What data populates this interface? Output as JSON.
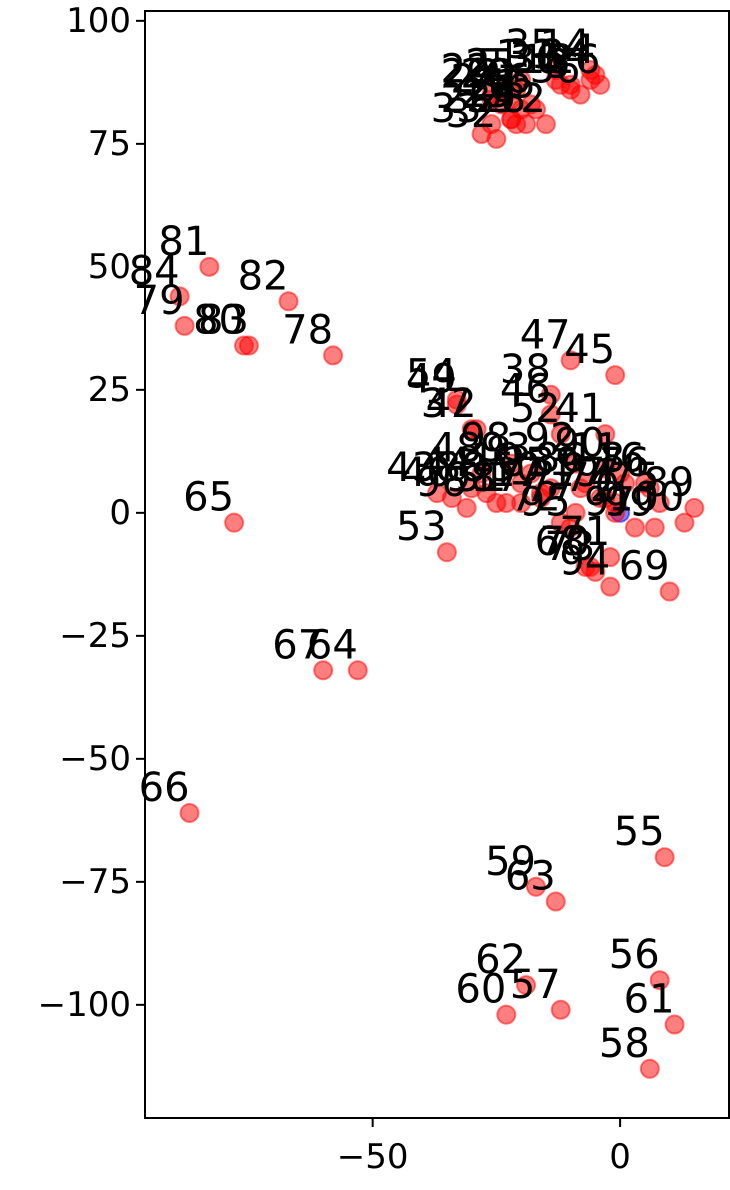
{
  "chart_data": {
    "type": "scatter",
    "title": "",
    "xlabel": "",
    "ylabel": "",
    "xlim": [
      -96,
      22
    ],
    "ylim": [
      -123,
      102
    ],
    "grid": false,
    "xticks": [
      -50,
      0
    ],
    "xtick_labels": [
      "−50",
      "0"
    ],
    "yticks": [
      100,
      75,
      50,
      25,
      0,
      -25,
      -50,
      -75,
      -100
    ],
    "ytick_labels": [
      "100",
      "75",
      "50",
      "25",
      "0",
      "−25",
      "−50",
      "−75",
      "−100"
    ],
    "point_color": "#ff0000",
    "highlight_color": "#0000ff",
    "points": [
      {
        "label": "0",
        "x": 0,
        "y": 0,
        "highlight": true
      },
      {
        "label": "1",
        "x": -20,
        "y": 88
      },
      {
        "label": "2",
        "x": -1,
        "y": 0
      },
      {
        "label": "3",
        "x": -10,
        "y": 86
      },
      {
        "label": "4",
        "x": -5,
        "y": 89
      },
      {
        "label": "5",
        "x": -24,
        "y": 86
      },
      {
        "label": "6",
        "x": -18,
        "y": 83
      },
      {
        "label": "7",
        "x": -3,
        "y": 3
      },
      {
        "label": "8",
        "x": 1,
        "y": 6
      },
      {
        "label": "9",
        "x": -21,
        "y": 79
      },
      {
        "label": "10",
        "x": -20,
        "y": 6
      },
      {
        "label": "11",
        "x": 0,
        "y": 8
      },
      {
        "label": "12",
        "x": -15,
        "y": 79
      },
      {
        "label": "13",
        "x": -22,
        "y": 80
      },
      {
        "label": "14",
        "x": -6,
        "y": 90
      },
      {
        "label": "15",
        "x": -17,
        "y": 82
      },
      {
        "label": "16",
        "x": 5,
        "y": 6
      },
      {
        "label": "17",
        "x": -16,
        "y": 3
      },
      {
        "label": "18",
        "x": -10,
        "y": 87
      },
      {
        "label": "19",
        "x": -4,
        "y": 3
      },
      {
        "label": "20",
        "x": -22,
        "y": 84
      },
      {
        "label": "21",
        "x": -20,
        "y": 82
      },
      {
        "label": "22",
        "x": -26,
        "y": 85
      },
      {
        "label": "23",
        "x": -26,
        "y": 79
      },
      {
        "label": "24",
        "x": -24,
        "y": 83
      },
      {
        "label": "25",
        "x": -21,
        "y": 86
      },
      {
        "label": "26",
        "x": -4,
        "y": 87
      },
      {
        "label": "27",
        "x": -22,
        "y": 80
      },
      {
        "label": "28",
        "x": -19,
        "y": 79
      },
      {
        "label": "29",
        "x": -26,
        "y": 84
      },
      {
        "label": "30",
        "x": -12,
        "y": 87
      },
      {
        "label": "31",
        "x": -13,
        "y": 88
      },
      {
        "label": "32",
        "x": -25,
        "y": 76
      },
      {
        "label": "33",
        "x": -28,
        "y": 77
      },
      {
        "label": "34",
        "x": -6,
        "y": 88
      },
      {
        "label": "35",
        "x": -13,
        "y": 90
      },
      {
        "label": "36",
        "x": -8,
        "y": 85
      },
      {
        "label": "37",
        "x": -30,
        "y": 17
      },
      {
        "label": "38",
        "x": -14,
        "y": 24
      },
      {
        "label": "39",
        "x": -8,
        "y": 5
      },
      {
        "label": "40",
        "x": -34,
        "y": 3
      },
      {
        "label": "41",
        "x": -3,
        "y": 16
      },
      {
        "label": "42",
        "x": -29,
        "y": 17
      },
      {
        "label": "43",
        "x": -37,
        "y": 4
      },
      {
        "label": "44",
        "x": -30,
        "y": 5
      },
      {
        "label": "45",
        "x": -1,
        "y": 28
      },
      {
        "label": "46",
        "x": -14,
        "y": 20
      },
      {
        "label": "47",
        "x": -10,
        "y": 31
      },
      {
        "label": "48",
        "x": -28,
        "y": 8
      },
      {
        "label": "49",
        "x": -33,
        "y": 22
      },
      {
        "label": "50",
        "x": -16,
        "y": 4
      },
      {
        "label": "51",
        "x": -23,
        "y": 2
      },
      {
        "label": "52",
        "x": -12,
        "y": 16
      },
      {
        "label": "53",
        "x": -35,
        "y": -8
      },
      {
        "label": "54",
        "x": -33,
        "y": 23
      },
      {
        "label": "55",
        "x": 9,
        "y": -70
      },
      {
        "label": "56",
        "x": 8,
        "y": -95
      },
      {
        "label": "57",
        "x": -12,
        "y": -101
      },
      {
        "label": "58",
        "x": 6,
        "y": -113
      },
      {
        "label": "59",
        "x": -17,
        "y": -76
      },
      {
        "label": "60",
        "x": -23,
        "y": -102
      },
      {
        "label": "61",
        "x": 11,
        "y": -104
      },
      {
        "label": "62",
        "x": -19,
        "y": -96
      },
      {
        "label": "63",
        "x": -13,
        "y": -79
      },
      {
        "label": "64",
        "x": -53,
        "y": -32
      },
      {
        "label": "65",
        "x": -78,
        "y": -2
      },
      {
        "label": "66",
        "x": -87,
        "y": -61
      },
      {
        "label": "67",
        "x": -60,
        "y": -32
      },
      {
        "label": "68",
        "x": -7,
        "y": -11
      },
      {
        "label": "69",
        "x": 10,
        "y": -16
      },
      {
        "label": "70",
        "x": -6,
        "y": -11
      },
      {
        "label": "71",
        "x": -2,
        "y": -9
      },
      {
        "label": "72",
        "x": -12,
        "y": -2
      },
      {
        "label": "73",
        "x": -5,
        "y": -12
      },
      {
        "label": "74",
        "x": -1,
        "y": 2
      },
      {
        "label": "75",
        "x": 8,
        "y": 2
      },
      {
        "label": "76",
        "x": 6,
        "y": 5
      },
      {
        "label": "77",
        "x": -9,
        "y": 0
      },
      {
        "label": "78",
        "x": -58,
        "y": 32
      },
      {
        "label": "79",
        "x": -88,
        "y": 38
      },
      {
        "label": "80",
        "x": -76,
        "y": 34
      },
      {
        "label": "81",
        "x": -83,
        "y": 50
      },
      {
        "label": "82",
        "x": -67,
        "y": 43
      },
      {
        "label": "83",
        "x": -75,
        "y": 34
      },
      {
        "label": "84",
        "x": -89,
        "y": 44
      },
      {
        "label": "85",
        "x": -14,
        "y": 5
      },
      {
        "label": "86",
        "x": -7,
        "y": 6
      },
      {
        "label": "87",
        "x": -20,
        "y": 2
      },
      {
        "label": "88",
        "x": -27,
        "y": 4
      },
      {
        "label": "89",
        "x": 15,
        "y": 1
      },
      {
        "label": "90",
        "x": -3,
        "y": 9
      },
      {
        "label": "91",
        "x": -25,
        "y": 2
      },
      {
        "label": "92",
        "x": -9,
        "y": 10
      },
      {
        "label": "93",
        "x": -18,
        "y": 8
      },
      {
        "label": "94",
        "x": -2,
        "y": -15
      },
      {
        "label": "95",
        "x": -10,
        "y": -3
      },
      {
        "label": "96",
        "x": -31,
        "y": 1
      },
      {
        "label": "97",
        "x": 3,
        "y": -3
      },
      {
        "label": "98",
        "x": -22,
        "y": 10
      },
      {
        "label": "99",
        "x": 7,
        "y": -3
      },
      {
        "label": "100",
        "x": 13,
        "y": -2
      }
    ]
  }
}
